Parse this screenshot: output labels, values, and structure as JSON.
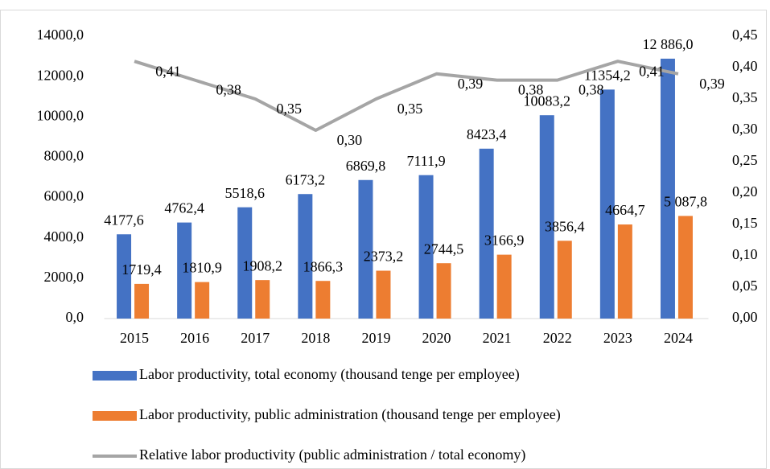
{
  "chart_data": {
    "type": "bar",
    "categories": [
      "2015",
      "2016",
      "2017",
      "2018",
      "2019",
      "2020",
      "2021",
      "2022",
      "2023",
      "2024"
    ],
    "ylim": [
      0,
      14000
    ],
    "yticks": [
      {
        "value": 0,
        "label": "0,0"
      },
      {
        "value": 2000,
        "label": "2000,0"
      },
      {
        "value": 4000,
        "label": "4000,0"
      },
      {
        "value": 6000,
        "label": "6000,0"
      },
      {
        "value": 8000,
        "label": "8000,0"
      },
      {
        "value": 10000,
        "label": "10000,0"
      },
      {
        "value": 12000,
        "label": "12000,0"
      },
      {
        "value": 14000,
        "label": "14000,0"
      }
    ],
    "y2lim": [
      0,
      0.45
    ],
    "y2ticks": [
      {
        "value": 0,
        "label": "0,00"
      },
      {
        "value": 0.05,
        "label": "0,05"
      },
      {
        "value": 0.1,
        "label": "0,10"
      },
      {
        "value": 0.15,
        "label": "0,15"
      },
      {
        "value": 0.2,
        "label": "0,20"
      },
      {
        "value": 0.25,
        "label": "0,25"
      },
      {
        "value": 0.3,
        "label": "0,30"
      },
      {
        "value": 0.35,
        "label": "0,35"
      },
      {
        "value": 0.4,
        "label": "0,40"
      },
      {
        "value": 0.45,
        "label": "0,45"
      }
    ],
    "legend": "bottom",
    "series": [
      {
        "name": "Labor productivity, total economy (thousand tenge per employee)",
        "type": "bar",
        "color": "#4472c4",
        "values": [
          4177.6,
          4762.4,
          5518.6,
          6173.2,
          6869.8,
          7111.9,
          8423.4,
          10083.2,
          11354.2,
          12886.0
        ],
        "value_labels": [
          "4177,6",
          "4762,4",
          "5518,6",
          "6173,2",
          "6869,8",
          "7111,9",
          "8423,4",
          "10083,2",
          "11354,2",
          "12 886,0"
        ]
      },
      {
        "name": "Labor productivity, public administration (thousand tenge per employee)",
        "type": "bar",
        "color": "#ed7d31",
        "values": [
          1719.4,
          1810.9,
          1908.2,
          1866.3,
          2373.2,
          2744.5,
          3166.9,
          3856.4,
          4664.7,
          5087.8
        ],
        "value_labels": [
          "1719,4",
          "1810,9",
          "1908,2",
          "1866,3",
          "2373,2",
          "2744,5",
          "3166,9",
          "3856,4",
          "4664,7",
          "5 087,8"
        ]
      },
      {
        "name": "Relative labor productivity (public administration / total economy)",
        "type": "line",
        "axis": "y2",
        "color": "#a5a5a5",
        "values": [
          0.41,
          0.38,
          0.35,
          0.3,
          0.35,
          0.39,
          0.38,
          0.38,
          0.41,
          0.39
        ],
        "value_labels": [
          "0,41",
          "0,38",
          "0,35",
          "0,30",
          "0,35",
          "0,39",
          "0,38",
          "0,38",
          "0,41",
          "0,39"
        ]
      }
    ]
  }
}
